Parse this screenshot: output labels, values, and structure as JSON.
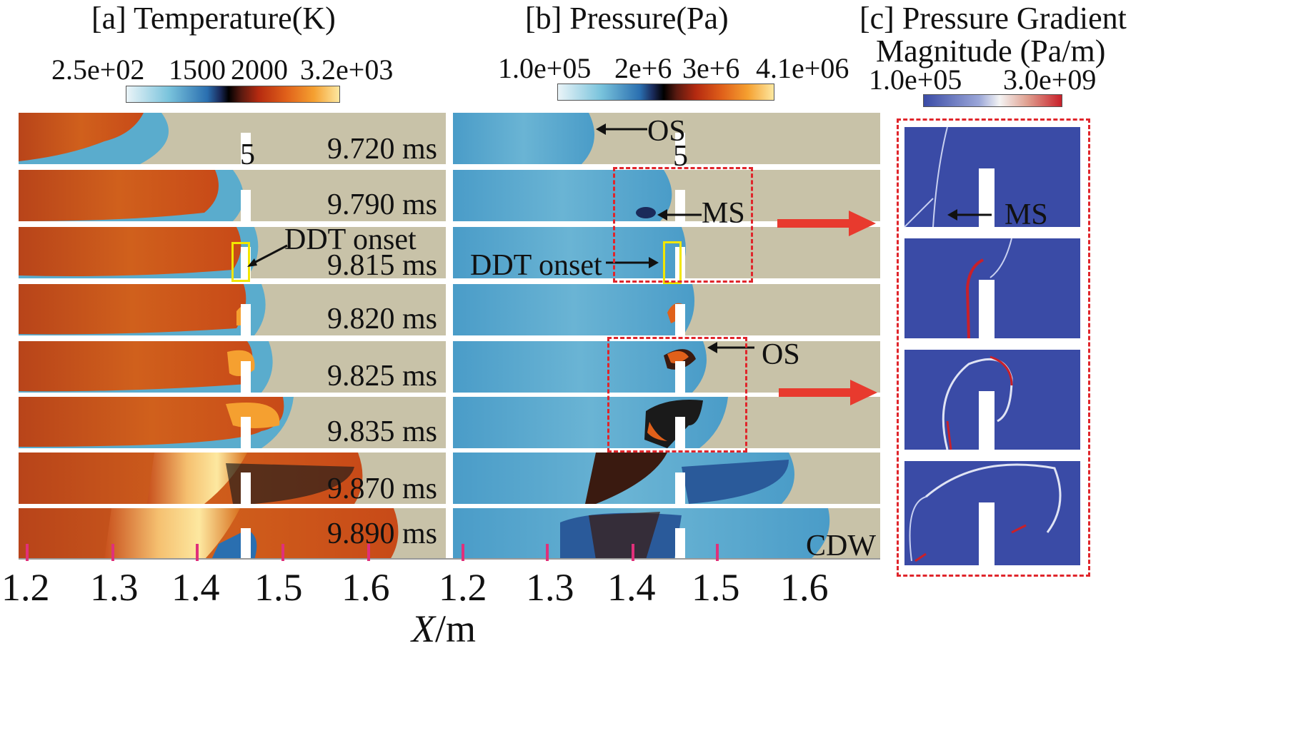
{
  "panels": {
    "a": {
      "title": "[a] Temperature(K)",
      "colorbar_ticks": [
        "2.5e+02",
        "1500",
        "2000",
        "3.2e+03"
      ]
    },
    "b": {
      "title": "[b] Pressure(Pa)",
      "colorbar_ticks": [
        "1.0e+05",
        "2e+6",
        "3e+6",
        "4.1e+06"
      ]
    },
    "c": {
      "title_line1": "[c] Pressure Gradient",
      "title_line2": "Magnitude (Pa/m)",
      "colorbar_ticks": [
        "1.0e+05",
        "3.0e+09"
      ]
    }
  },
  "times": [
    "9.720 ms",
    "9.790 ms",
    "9.815 ms",
    "9.820 ms",
    "9.825 ms",
    "9.835 ms",
    "9.870 ms",
    "9.890 ms"
  ],
  "obstacle_label": "5",
  "annotations": {
    "os": "OS",
    "ms": "MS",
    "ddt_onset": "DDT onset",
    "cdw": "CDW"
  },
  "x_axis": {
    "ticks_a": [
      "1.2",
      "1.3",
      "1.4",
      "1.5",
      "1.6"
    ],
    "ticks_b": [
      "1.2",
      "1.3",
      "1.4",
      "1.5",
      "1.6"
    ],
    "label_italic": "X",
    "label_rest": "/m"
  },
  "colors": {
    "background_gas": "#c8c2a8",
    "hot": "#c8501c",
    "cold": "#5aaccd",
    "annotation_box": "#e0252b",
    "onset_box": "#f2e600",
    "arrow": "#e83a2e",
    "gradient_bg": "#3a4ba6"
  }
}
